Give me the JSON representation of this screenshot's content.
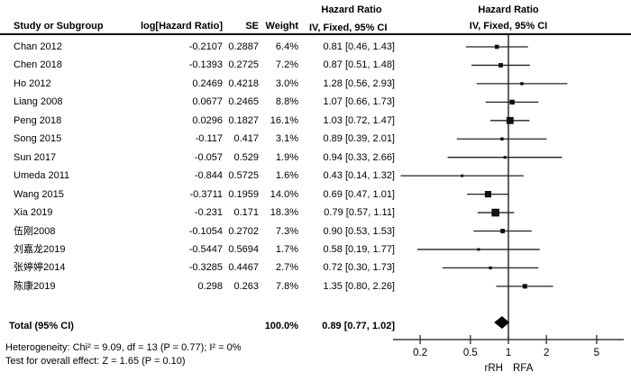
{
  "headers": {
    "hazard_ratio_left": "Hazard Ratio",
    "method_left": "IV, Fixed, 95% CI",
    "hazard_ratio_right": "Hazard Ratio",
    "method_right": "IV, Fixed, 95% CI"
  },
  "columns": {
    "study": "Study or Subgroup",
    "log_hr": "log[Hazard Ratio]",
    "se": "SE",
    "weight": "Weight",
    "ci": "IV, Fixed, 95% CI"
  },
  "chart_data": {
    "type": "forest",
    "effect_measure": "Hazard Ratio",
    "model": "IV, Fixed, 95% CI",
    "axis": {
      "scale": "log",
      "ticks": [
        "0.2",
        "0.5",
        "1",
        "2",
        "5"
      ],
      "tick_values": [
        0.2,
        0.5,
        1,
        2,
        5
      ],
      "left_label": "rRH",
      "right_label": "RFA"
    },
    "studies": [
      {
        "name": "Chan 2012",
        "log_hr": "-0.2107",
        "se": "0.2887",
        "weight": "6.4%",
        "weight_pct": 6.4,
        "hr": 0.81,
        "ci_low": 0.46,
        "ci_high": 1.43,
        "ci_label": "0.81 [0.46, 1.43]"
      },
      {
        "name": "Chen 2018",
        "log_hr": "-0.1393",
        "se": "0.2725",
        "weight": "7.2%",
        "weight_pct": 7.2,
        "hr": 0.87,
        "ci_low": 0.51,
        "ci_high": 1.48,
        "ci_label": "0.87 [0.51, 1.48]"
      },
      {
        "name": "Ho 2012",
        "log_hr": "0.2469",
        "se": "0.4218",
        "weight": "3.0%",
        "weight_pct": 3.0,
        "hr": 1.28,
        "ci_low": 0.56,
        "ci_high": 2.93,
        "ci_label": "1.28 [0.56, 2.93]"
      },
      {
        "name": "Liang 2008",
        "log_hr": "0.0677",
        "se": "0.2465",
        "weight": "8.8%",
        "weight_pct": 8.8,
        "hr": 1.07,
        "ci_low": 0.66,
        "ci_high": 1.73,
        "ci_label": "1.07 [0.66, 1.73]"
      },
      {
        "name": "Peng 2018",
        "log_hr": "0.0296",
        "se": "0.1827",
        "weight": "16.1%",
        "weight_pct": 16.1,
        "hr": 1.03,
        "ci_low": 0.72,
        "ci_high": 1.47,
        "ci_label": "1.03 [0.72, 1.47]"
      },
      {
        "name": "Song 2015",
        "log_hr": "-0.117",
        "se": "0.417",
        "weight": "3.1%",
        "weight_pct": 3.1,
        "hr": 0.89,
        "ci_low": 0.39,
        "ci_high": 2.01,
        "ci_label": "0.89 [0.39, 2.01]"
      },
      {
        "name": "Sun 2017",
        "log_hr": "-0.057",
        "se": "0.529",
        "weight": "1.9%",
        "weight_pct": 1.9,
        "hr": 0.94,
        "ci_low": 0.33,
        "ci_high": 2.66,
        "ci_label": "0.94 [0.33, 2.66]"
      },
      {
        "name": "Umeda 2011",
        "log_hr": "-0.844",
        "se": "0.5725",
        "weight": "1.6%",
        "weight_pct": 1.6,
        "hr": 0.43,
        "ci_low": 0.14,
        "ci_high": 1.32,
        "ci_label": "0.43 [0.14, 1.32]"
      },
      {
        "name": "Wang 2015",
        "log_hr": "-0.3711",
        "se": "0.1959",
        "weight": "14.0%",
        "weight_pct": 14.0,
        "hr": 0.69,
        "ci_low": 0.47,
        "ci_high": 1.01,
        "ci_label": "0.69 [0.47, 1.01]"
      },
      {
        "name": "Xia 2019",
        "log_hr": "-0.231",
        "se": "0.171",
        "weight": "18.3%",
        "weight_pct": 18.3,
        "hr": 0.79,
        "ci_low": 0.57,
        "ci_high": 1.11,
        "ci_label": "0.79 [0.57, 1.11]"
      },
      {
        "name": "伍刚2008",
        "log_hr": "-0.1054",
        "se": "0.2702",
        "weight": "7.3%",
        "weight_pct": 7.3,
        "hr": 0.9,
        "ci_low": 0.53,
        "ci_high": 1.53,
        "ci_label": "0.90 [0.53, 1.53]"
      },
      {
        "name": "刘嘉龙2019",
        "log_hr": "-0.5447",
        "se": "0.5694",
        "weight": "1.7%",
        "weight_pct": 1.7,
        "hr": 0.58,
        "ci_low": 0.19,
        "ci_high": 1.77,
        "ci_label": "0.58 [0.19, 1.77]"
      },
      {
        "name": "张婷婷2014",
        "log_hr": "-0.3285",
        "se": "0.4467",
        "weight": "2.7%",
        "weight_pct": 2.7,
        "hr": 0.72,
        "ci_low": 0.3,
        "ci_high": 1.73,
        "ci_label": "0.72 [0.30, 1.73]"
      },
      {
        "name": "陈康2019",
        "log_hr": "0.298",
        "se": "0.263",
        "weight": "7.8%",
        "weight_pct": 7.8,
        "hr": 1.35,
        "ci_low": 0.8,
        "ci_high": 2.26,
        "ci_label": "1.35 [0.80, 2.26]"
      }
    ],
    "total": {
      "label": "Total (95% CI)",
      "weight": "100.0%",
      "hr": 0.89,
      "ci_low": 0.77,
      "ci_high": 1.02,
      "ci_label": "0.89 [0.77, 1.02]"
    },
    "notes": {
      "heterogeneity": "Heterogeneity: Chi² = 9.09, df = 13 (P = 0.77); I² = 0%",
      "overall_effect": "Test for overall effect: Z = 1.65 (P = 0.10)"
    }
  }
}
